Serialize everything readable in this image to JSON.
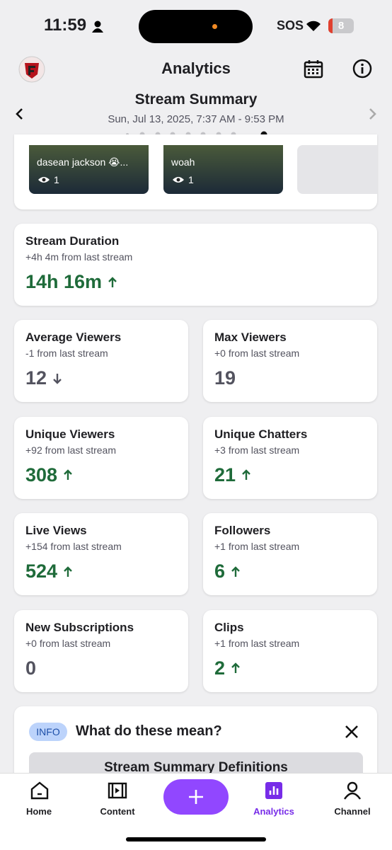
{
  "status_bar": {
    "time": "11:59",
    "sos": "SOS",
    "battery": "8"
  },
  "header": {
    "title": "Analytics"
  },
  "summary": {
    "title": "Stream Summary",
    "date": "Sun, Jul 13, 2025, 7:37 AM - 9:53 PM"
  },
  "clips": [
    {
      "title": "dasean jackson 😭...",
      "views": "1"
    },
    {
      "title": "woah",
      "views": "1"
    }
  ],
  "stats": [
    {
      "label": "Stream Duration",
      "change": "+4h 4m from last stream",
      "value": "14h 16m",
      "trend": "up"
    },
    {
      "label": "Average Viewers",
      "change": "-1 from last stream",
      "value": "12",
      "trend": "down"
    },
    {
      "label": "Max Viewers",
      "change": "+0 from last stream",
      "value": "19",
      "trend": "none"
    },
    {
      "label": "Unique Viewers",
      "change": "+92 from last stream",
      "value": "308",
      "trend": "up"
    },
    {
      "label": "Unique Chatters",
      "change": "+3 from last stream",
      "value": "21",
      "trend": "up"
    },
    {
      "label": "Live Views",
      "change": "+154 from last stream",
      "value": "524",
      "trend": "up"
    },
    {
      "label": "Followers",
      "change": "+1 from last stream",
      "value": "6",
      "trend": "up"
    },
    {
      "label": "New Subscriptions",
      "change": "+0 from last stream",
      "value": "0",
      "trend": "none"
    },
    {
      "label": "Clips",
      "change": "+1 from last stream",
      "value": "2",
      "trend": "up"
    }
  ],
  "info": {
    "badge": "INFO",
    "title": "What do these mean?",
    "button": "Stream Summary Definitions"
  },
  "nav": [
    {
      "label": "Home"
    },
    {
      "label": "Content"
    },
    {
      "label": "Analytics"
    },
    {
      "label": "Channel"
    }
  ]
}
